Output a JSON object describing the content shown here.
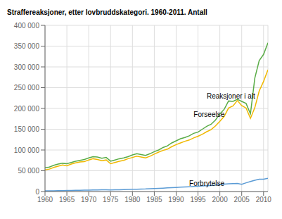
{
  "chart_data": {
    "type": "line",
    "title": "Straffereaksjoner, etter lovbruddskategori. 1960-2011. Antall",
    "x": [
      1960,
      1961,
      1962,
      1963,
      1964,
      1965,
      1966,
      1967,
      1968,
      1969,
      1970,
      1971,
      1972,
      1973,
      1974,
      1975,
      1976,
      1977,
      1978,
      1979,
      1980,
      1981,
      1982,
      1983,
      1984,
      1985,
      1986,
      1987,
      1988,
      1989,
      1990,
      1991,
      1992,
      1993,
      1994,
      1995,
      1996,
      1997,
      1998,
      1999,
      2000,
      2001,
      2002,
      2003,
      2004,
      2005,
      2006,
      2007,
      2008,
      2009,
      2010,
      2011
    ],
    "series": [
      {
        "name": "Reaksjoner i alt",
        "color": "#5aac47",
        "values": [
          57000,
          59000,
          63000,
          66000,
          68000,
          67000,
          70000,
          73000,
          75000,
          77000,
          81000,
          84000,
          83000,
          80000,
          82000,
          73000,
          76000,
          79000,
          81000,
          84000,
          88000,
          91000,
          89000,
          87000,
          91000,
          96000,
          100000,
          106000,
          110000,
          117000,
          122000,
          127000,
          130000,
          134000,
          140000,
          143000,
          150000,
          157000,
          162000,
          172000,
          187000,
          198000,
          218000,
          217000,
          222000,
          217000,
          212000,
          187000,
          273000,
          315000,
          330000,
          358000
        ]
      },
      {
        "name": "Forseelse",
        "color": "#f0b800",
        "values": [
          52000,
          54000,
          58000,
          61000,
          64000,
          62000,
          66000,
          69000,
          71000,
          72000,
          76000,
          79000,
          77000,
          74000,
          76000,
          67000,
          70000,
          73000,
          75000,
          79000,
          82000,
          85000,
          83000,
          81000,
          85000,
          90000,
          95000,
          99000,
          102000,
          108000,
          113000,
          117000,
          121000,
          124000,
          129000,
          133000,
          138000,
          144000,
          149000,
          158000,
          169000,
          181000,
          201000,
          206000,
          219000,
          207000,
          201000,
          176000,
          202000,
          242000,
          265000,
          293000
        ]
      },
      {
        "name": "Forbrytelse",
        "color": "#5b9bd5",
        "values": [
          1500,
          1700,
          1900,
          2100,
          2200,
          2400,
          2600,
          2800,
          3000,
          3200,
          3600,
          3800,
          4000,
          4200,
          4400,
          4000,
          4200,
          4400,
          4600,
          4900,
          5300,
          5700,
          6100,
          6200,
          6700,
          7200,
          7700,
          8200,
          8700,
          9300,
          9800,
          10500,
          11000,
          11500,
          12200,
          12800,
          13400,
          14000,
          14600,
          15700,
          16800,
          17800,
          18500,
          19000,
          19500,
          17500,
          21000,
          24000,
          27000,
          29500,
          29500,
          32000
        ]
      }
    ],
    "annotations": [
      {
        "text": "Reaksjoner i alt",
        "x": 1997,
        "y": 220000
      },
      {
        "text": "Forseelse",
        "x": 1994,
        "y": 176000
      },
      {
        "text": "Forbrytelse",
        "x": 1993,
        "y": 11000
      }
    ],
    "xlim": [
      1960,
      2011
    ],
    "xticks": [
      1960,
      1965,
      1970,
      1975,
      1980,
      1985,
      1990,
      1995,
      2000,
      2005,
      2010
    ],
    "ylim": [
      0,
      400000
    ],
    "yticks": [
      0,
      {
        "value": 50000,
        "label": "50 000"
      },
      {
        "value": 100000,
        "label": "100 000"
      },
      {
        "value": 150000,
        "label": "150 000"
      },
      {
        "value": 200000,
        "label": "200 000"
      },
      {
        "value": 250000,
        "label": "250 000"
      },
      {
        "value": 300000,
        "label": "300 000"
      },
      {
        "value": 350000,
        "label": "350 000"
      },
      {
        "value": 400000,
        "label": "400 000"
      }
    ],
    "grid": true
  }
}
